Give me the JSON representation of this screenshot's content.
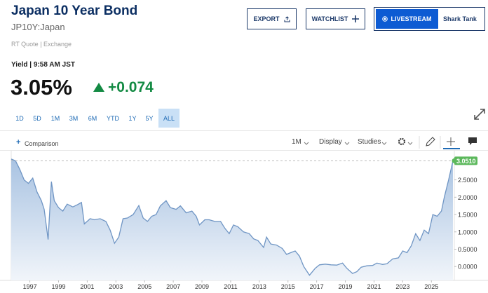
{
  "header": {
    "title": "Japan 10 Year Bond",
    "symbol": "JP10Y:Japan",
    "quote_source": "RT Quote | Exchange"
  },
  "buttons": {
    "export": "EXPORT",
    "watchlist": "WATCHLIST",
    "livestream": "LIVESTREAM",
    "show": "Shark Tank"
  },
  "quote": {
    "label": "Yield | 9:58 AM JST",
    "price": "3.05%",
    "change": "+0.074"
  },
  "ranges": [
    "1D",
    "5D",
    "1M",
    "3M",
    "6M",
    "YTD",
    "1Y",
    "5Y",
    "ALL"
  ],
  "toolbar": {
    "comparison": "Comparison",
    "interval": "1M",
    "display": "Display",
    "studies": "Studies"
  },
  "chart_data": {
    "type": "area",
    "x": [
      1995.7,
      1996.0,
      1996.3,
      1996.6,
      1996.9,
      1997.2,
      1997.5,
      1997.8,
      1998.0,
      1998.27,
      1998.5,
      1998.7,
      1999.0,
      1999.3,
      1999.6,
      2000.0,
      2000.3,
      2000.6,
      2000.8,
      2001.2,
      2001.5,
      2001.9,
      2002.3,
      2002.6,
      2002.9,
      2003.2,
      2003.5,
      2003.8,
      2004.2,
      2004.6,
      2004.9,
      2005.2,
      2005.5,
      2005.8,
      2006.1,
      2006.5,
      2006.8,
      2007.2,
      2007.5,
      2007.9,
      2008.3,
      2008.6,
      2008.83,
      2009.2,
      2009.5,
      2009.9,
      2010.3,
      2010.6,
      2010.9,
      2011.2,
      2011.5,
      2011.9,
      2012.3,
      2012.6,
      2012.9,
      2013.3,
      2013.5,
      2013.8,
      2014.2,
      2014.6,
      2014.9,
      2015.2,
      2015.5,
      2015.8,
      2016.1,
      2016.5,
      2016.9,
      2017.2,
      2017.6,
      2018.0,
      2018.4,
      2018.8,
      2019.1,
      2019.5,
      2019.8,
      2020.1,
      2020.5,
      2020.9,
      2021.2,
      2021.6,
      2021.9,
      2022.3,
      2022.7,
      2023.0,
      2023.3,
      2023.6,
      2023.9,
      2024.2,
      2024.5,
      2024.8,
      2025.1,
      2025.4,
      2025.7,
      2025.9,
      2026.2,
      2026.5
    ],
    "values": [
      3.1,
      3.05,
      2.8,
      2.5,
      2.4,
      2.55,
      2.15,
      1.9,
      1.65,
      0.78,
      2.45,
      1.9,
      1.7,
      1.6,
      1.8,
      1.72,
      1.78,
      1.85,
      1.23,
      1.38,
      1.35,
      1.38,
      1.3,
      1.05,
      0.67,
      0.85,
      1.38,
      1.4,
      1.5,
      1.76,
      1.4,
      1.3,
      1.45,
      1.5,
      1.75,
      1.9,
      1.7,
      1.65,
      1.75,
      1.55,
      1.6,
      1.45,
      1.2,
      1.35,
      1.35,
      1.3,
      1.3,
      1.1,
      0.95,
      1.2,
      1.15,
      1.0,
      0.95,
      0.8,
      0.75,
      0.55,
      0.85,
      0.65,
      0.62,
      0.52,
      0.35,
      0.4,
      0.45,
      0.3,
      0.0,
      -0.25,
      -0.05,
      0.05,
      0.07,
      0.05,
      0.04,
      0.1,
      -0.05,
      -0.2,
      -0.15,
      -0.02,
      0.02,
      0.03,
      0.1,
      0.06,
      0.08,
      0.22,
      0.25,
      0.45,
      0.4,
      0.6,
      0.95,
      0.75,
      1.05,
      0.95,
      1.5,
      1.45,
      1.6,
      2.0,
      2.5,
      3.051
    ],
    "color": "#6f95c4",
    "marker": {
      "value": 3.051,
      "label": "3.0510",
      "color": "#5cb85c"
    },
    "xlim": [
      1995.7,
      2026.6
    ],
    "xticks": [
      1997,
      1999,
      2001,
      2003,
      2005,
      2007,
      2009,
      2011,
      2013,
      2015,
      2017,
      2019,
      2021,
      2023,
      2025
    ],
    "ylim": [
      -0.4,
      3.2
    ],
    "yticks": [
      {
        "value": 0,
        "label": "0.0000"
      },
      {
        "value": 0.5,
        "label": "0.5000"
      },
      {
        "value": 1,
        "label": "1.0000"
      },
      {
        "value": 1.5,
        "label": "1.5000"
      },
      {
        "value": 2,
        "label": "2.0000"
      },
      {
        "value": 2.5,
        "label": "2.5000"
      }
    ],
    "grid": false
  }
}
